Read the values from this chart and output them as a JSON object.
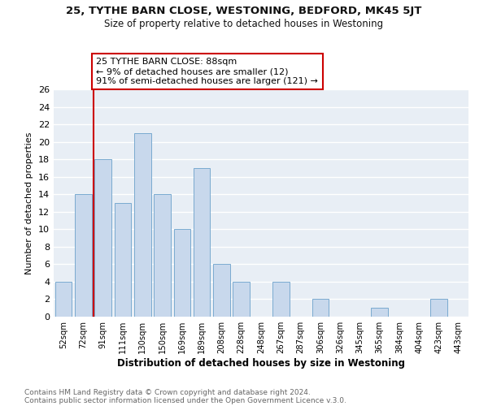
{
  "title1": "25, TYTHE BARN CLOSE, WESTONING, BEDFORD, MK45 5JT",
  "title2": "Size of property relative to detached houses in Westoning",
  "xlabel": "Distribution of detached houses by size in Westoning",
  "ylabel": "Number of detached properties",
  "bin_labels": [
    "52sqm",
    "72sqm",
    "91sqm",
    "111sqm",
    "130sqm",
    "150sqm",
    "169sqm",
    "189sqm",
    "208sqm",
    "228sqm",
    "248sqm",
    "267sqm",
    "287sqm",
    "306sqm",
    "326sqm",
    "345sqm",
    "365sqm",
    "384sqm",
    "404sqm",
    "423sqm",
    "443sqm"
  ],
  "bar_heights": [
    4,
    14,
    18,
    13,
    21,
    14,
    10,
    17,
    6,
    4,
    0,
    4,
    0,
    2,
    0,
    0,
    1,
    0,
    0,
    2,
    0
  ],
  "bar_color": "#c8d8ec",
  "bar_edge_color": "#7aaad0",
  "subject_line_color": "#cc0000",
  "subject_bin_index": 2,
  "ylim": [
    0,
    26
  ],
  "yticks": [
    0,
    2,
    4,
    6,
    8,
    10,
    12,
    14,
    16,
    18,
    20,
    22,
    24,
    26
  ],
  "annotation_line1": "25 TYTHE BARN CLOSE: 88sqm",
  "annotation_line2": "← 9% of detached houses are smaller (12)",
  "annotation_line3": "91% of semi-detached houses are larger (121) →",
  "footer1": "Contains HM Land Registry data © Crown copyright and database right 2024.",
  "footer2": "Contains public sector information licensed under the Open Government Licence v.3.0.",
  "background_color": "#ffffff",
  "plot_bg_color": "#e8eef5",
  "grid_color": "#ffffff"
}
